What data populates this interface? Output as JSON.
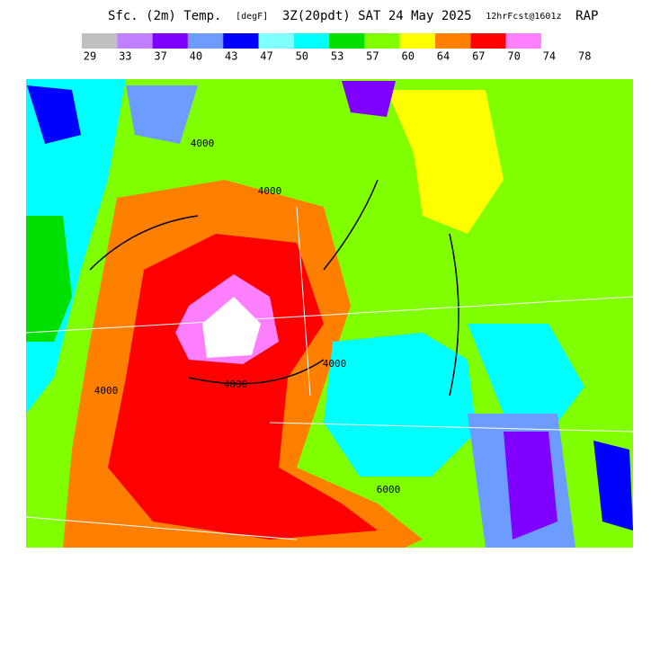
{
  "header": {
    "parts": [
      "Sfc. (2m) Temp.",
      "[degF]",
      "3Z(20pdt) SAT 24 May 2025",
      "12hrFcst@1601z",
      "RAP"
    ]
  },
  "colorbar": {
    "colors": [
      "#c0c0c0",
      "#c080ff",
      "#8000ff",
      "#6c9cff",
      "#0000ff",
      "#80ffff",
      "#00ffff",
      "#00e000",
      "#80ff00",
      "#ffff00",
      "#ff8000",
      "#ff0000",
      "#ff80ff"
    ],
    "labels": [
      "29",
      "33",
      "37",
      "40",
      "43",
      "47",
      "50",
      "53",
      "57",
      "60",
      "64",
      "67",
      "70",
      "74",
      "78"
    ]
  },
  "map": {
    "contour_labels": [
      "4000",
      "4000",
      "4000",
      "4000",
      "4000",
      "6000"
    ]
  }
}
